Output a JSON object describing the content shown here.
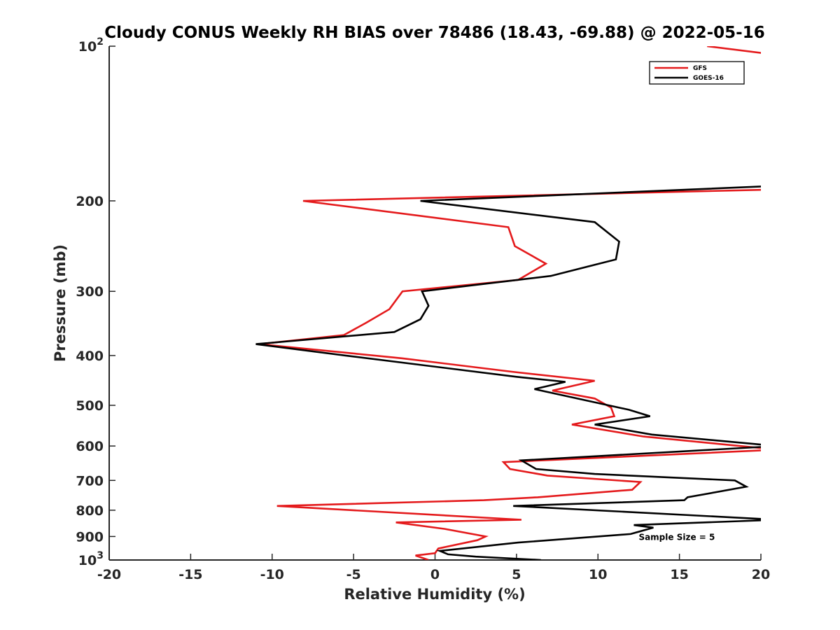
{
  "chart_data": {
    "type": "line",
    "title": "Cloudy CONUS Weekly RH BIAS over 78486 (18.43, -69.88) @ 2022-05-16",
    "xlabel": "Relative Humidity (%)",
    "ylabel": "Pressure (mb)",
    "xlim": [
      -20,
      20
    ],
    "ylim": [
      100,
      1000
    ],
    "yscale": "log",
    "y_reversed": true,
    "grid": false,
    "legend_position": "top-right",
    "x_ticks": [
      -20,
      -15,
      -10,
      -5,
      0,
      5,
      10,
      15,
      20
    ],
    "x_tick_labels": [
      "-20",
      "-15",
      "-10",
      "-5",
      "0",
      "5",
      "10",
      "15",
      "20"
    ],
    "y_ticks": [
      {
        "value": 100,
        "base": "10",
        "exp": "2"
      },
      {
        "value": 200,
        "label": "200"
      },
      {
        "value": 300,
        "label": "300"
      },
      {
        "value": 400,
        "label": "400"
      },
      {
        "value": 500,
        "label": "500"
      },
      {
        "value": 600,
        "label": "600"
      },
      {
        "value": 700,
        "label": "700"
      },
      {
        "value": 800,
        "label": "800"
      },
      {
        "value": 900,
        "label": "900"
      },
      {
        "value": 1000,
        "base": "10",
        "exp": "3"
      }
    ],
    "series": [
      {
        "name": "GFS",
        "color": "#e41a1c",
        "points": [
          {
            "x": 16.7,
            "p": 100
          },
          {
            "x": 21.0,
            "p": 104
          },
          {
            "x": null,
            "p": null
          },
          {
            "x": 21.0,
            "p": 190
          },
          {
            "x": -8.1,
            "p": 200
          },
          {
            "x": 4.5,
            "p": 225
          },
          {
            "x": 4.9,
            "p": 245
          },
          {
            "x": 6.8,
            "p": 265
          },
          {
            "x": 5.1,
            "p": 285
          },
          {
            "x": -2.0,
            "p": 300
          },
          {
            "x": -2.8,
            "p": 325
          },
          {
            "x": -4.2,
            "p": 345
          },
          {
            "x": -5.6,
            "p": 365
          },
          {
            "x": -10.8,
            "p": 380
          },
          {
            "x": -2.0,
            "p": 405
          },
          {
            "x": 4.7,
            "p": 430
          },
          {
            "x": 9.8,
            "p": 448
          },
          {
            "x": 7.2,
            "p": 468
          },
          {
            "x": 9.8,
            "p": 485
          },
          {
            "x": 10.8,
            "p": 505
          },
          {
            "x": 11.0,
            "p": 525
          },
          {
            "x": 8.4,
            "p": 545
          },
          {
            "x": 12.8,
            "p": 575
          },
          {
            "x": 21.0,
            "p": 610
          },
          {
            "x": 4.2,
            "p": 645
          },
          {
            "x": 4.6,
            "p": 665
          },
          {
            "x": 6.9,
            "p": 685
          },
          {
            "x": 12.6,
            "p": 705
          },
          {
            "x": 12.1,
            "p": 730
          },
          {
            "x": 6.3,
            "p": 755
          },
          {
            "x": 3.0,
            "p": 765
          },
          {
            "x": -9.7,
            "p": 785
          },
          {
            "x": 5.3,
            "p": 835
          },
          {
            "x": -2.4,
            "p": 845
          },
          {
            "x": 0.6,
            "p": 870
          },
          {
            "x": 3.1,
            "p": 900
          },
          {
            "x": 2.6,
            "p": 915
          },
          {
            "x": 0.2,
            "p": 950
          },
          {
            "x": 0.0,
            "p": 970
          },
          {
            "x": -1.2,
            "p": 980
          },
          {
            "x": -0.4,
            "p": 1000
          }
        ]
      },
      {
        "name": "GOES-16",
        "color": "#000000",
        "points": [
          {
            "x": 21.0,
            "p": 187
          },
          {
            "x": -0.9,
            "p": 200
          },
          {
            "x": 9.8,
            "p": 220
          },
          {
            "x": 11.3,
            "p": 240
          },
          {
            "x": 11.1,
            "p": 260
          },
          {
            "x": 7.1,
            "p": 280
          },
          {
            "x": -0.8,
            "p": 300
          },
          {
            "x": -0.4,
            "p": 320
          },
          {
            "x": -0.9,
            "p": 340
          },
          {
            "x": -2.5,
            "p": 360
          },
          {
            "x": -11.0,
            "p": 380
          },
          {
            "x": -5.5,
            "p": 400
          },
          {
            "x": 5.0,
            "p": 440
          },
          {
            "x": 8.0,
            "p": 450
          },
          {
            "x": 6.1,
            "p": 465
          },
          {
            "x": 11.9,
            "p": 510
          },
          {
            "x": 13.2,
            "p": 525
          },
          {
            "x": 9.8,
            "p": 545
          },
          {
            "x": 13.3,
            "p": 570
          },
          {
            "x": 21.0,
            "p": 600
          },
          {
            "x": 5.3,
            "p": 640
          },
          {
            "x": 6.2,
            "p": 665
          },
          {
            "x": 9.8,
            "p": 680
          },
          {
            "x": 18.4,
            "p": 700
          },
          {
            "x": 19.1,
            "p": 720
          },
          {
            "x": 15.5,
            "p": 755
          },
          {
            "x": 15.3,
            "p": 765
          },
          {
            "x": 4.8,
            "p": 785
          },
          {
            "x": 21.0,
            "p": 835
          },
          {
            "x": 12.2,
            "p": 855
          },
          {
            "x": 13.4,
            "p": 865
          },
          {
            "x": 12.0,
            "p": 890
          },
          {
            "x": 5.1,
            "p": 925
          },
          {
            "x": 0.3,
            "p": 960
          },
          {
            "x": 0.8,
            "p": 975
          },
          {
            "x": 2.5,
            "p": 985
          },
          {
            "x": 6.5,
            "p": 1000
          }
        ]
      }
    ],
    "annotations": [
      {
        "text": "Sample Size = 5",
        "x": 12.5,
        "p": 900
      }
    ]
  }
}
